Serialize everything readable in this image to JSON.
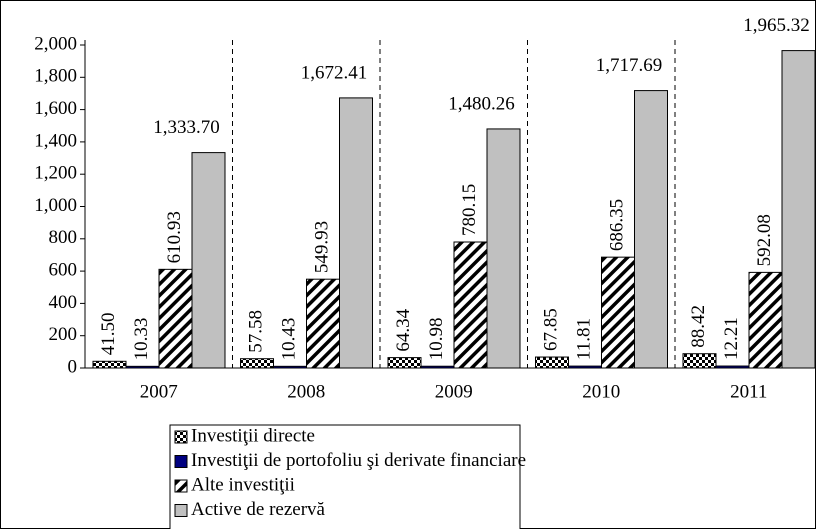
{
  "chart_data": {
    "type": "bar",
    "categories": [
      "2007",
      "2008",
      "2009",
      "2010",
      "2011"
    ],
    "series": [
      {
        "name": "Investiţii directe",
        "color": "#000000",
        "pattern": "checker",
        "values": [
          41.5,
          57.58,
          64.34,
          67.85,
          88.42
        ],
        "value_labels": [
          "41.50",
          "57.58",
          "64.34",
          "67.85",
          "88.42"
        ]
      },
      {
        "name": "Investiţii de portofoliu şi derivate financiare",
        "color": "#000080",
        "pattern": "solid",
        "values": [
          10.33,
          10.43,
          10.98,
          11.81,
          12.21
        ],
        "value_labels": [
          "10.33",
          "10.43",
          "10.98",
          "11.81",
          "12.21"
        ]
      },
      {
        "name": "Alte investiţii",
        "color": "#000000",
        "pattern": "hatch",
        "values": [
          610.93,
          549.93,
          780.15,
          686.35,
          592.08
        ],
        "value_labels": [
          "610.93",
          "549.93",
          "780.15",
          "686.35",
          "592.08"
        ]
      },
      {
        "name": "Active de rezervă",
        "color": "#c0c0c0",
        "pattern": "solid",
        "values": [
          1333.7,
          1672.41,
          1480.26,
          1717.69,
          1965.32
        ],
        "value_labels": [
          "1,333.70",
          "1,672.41",
          "1,480.26",
          "1,717.69",
          "1,965.32"
        ]
      }
    ],
    "ylim": [
      0,
      2000
    ],
    "yticks": [
      0,
      200,
      400,
      600,
      800,
      {
        "value": 1000,
        "label": "1,000"
      },
      {
        "value": 1200,
        "label": "1,200"
      },
      {
        "value": 1400,
        "label": "1,400"
      },
      {
        "value": 1600,
        "label": "1,600"
      },
      {
        "value": 1800,
        "label": "1,800"
      },
      {
        "value": 2000,
        "label": "2,000"
      }
    ],
    "legend": "bottom"
  }
}
